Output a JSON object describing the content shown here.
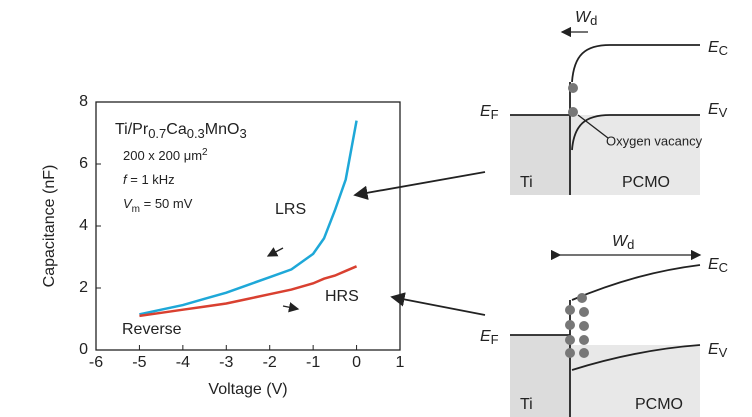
{
  "chart_data": {
    "type": "line",
    "x": [
      -5,
      -4.5,
      -4,
      -3.5,
      -3,
      -2.5,
      -2,
      -1.5,
      -1,
      -0.75,
      -0.5,
      -0.25,
      0
    ],
    "series": [
      {
        "name": "LRS",
        "color": "#1ea8d8",
        "values": [
          1.15,
          1.3,
          1.45,
          1.65,
          1.85,
          2.1,
          2.35,
          2.6,
          3.1,
          3.6,
          4.5,
          5.5,
          7.4
        ]
      },
      {
        "name": "HRS",
        "color": "#d94030",
        "values": [
          1.1,
          1.2,
          1.3,
          1.4,
          1.5,
          1.65,
          1.8,
          1.95,
          2.15,
          2.3,
          2.4,
          2.55,
          2.7
        ]
      }
    ],
    "xlim": [
      -6,
      1
    ],
    "xticks": [
      -6,
      -5,
      -4,
      -3,
      -2,
      -1,
      0,
      1
    ],
    "ylim": [
      0,
      8
    ],
    "yticks": [
      0,
      2,
      4,
      6,
      8
    ],
    "x_label": "Voltage (V)",
    "y_label": "Capacitance (nF)",
    "sample": [
      "Ti/Pr",
      "0.7",
      "Ca",
      "0.3",
      "MnO",
      "3"
    ],
    "area": [
      "200 x 200 μm",
      "2"
    ],
    "frequency": [
      "f",
      " = 1 kHz"
    ],
    "amplitude": [
      "V",
      "m",
      " = 50 mV"
    ],
    "annotation": "Reverse"
  },
  "band_diagrams": [
    {
      "width": [
        "W",
        "d"
      ],
      "ec": [
        "E",
        "C"
      ],
      "ev": [
        "E",
        "V"
      ],
      "ef": [
        "E",
        "F"
      ],
      "vacancy": "Oxygen vacancy",
      "metal": "Ti",
      "oxide": "PCMO"
    },
    {
      "width": [
        "W",
        "d"
      ],
      "ec": [
        "E",
        "C"
      ],
      "ev": [
        "E",
        "V"
      ],
      "ef": [
        "E",
        "F"
      ],
      "metal": "Ti",
      "oxide": "PCMO"
    }
  ]
}
